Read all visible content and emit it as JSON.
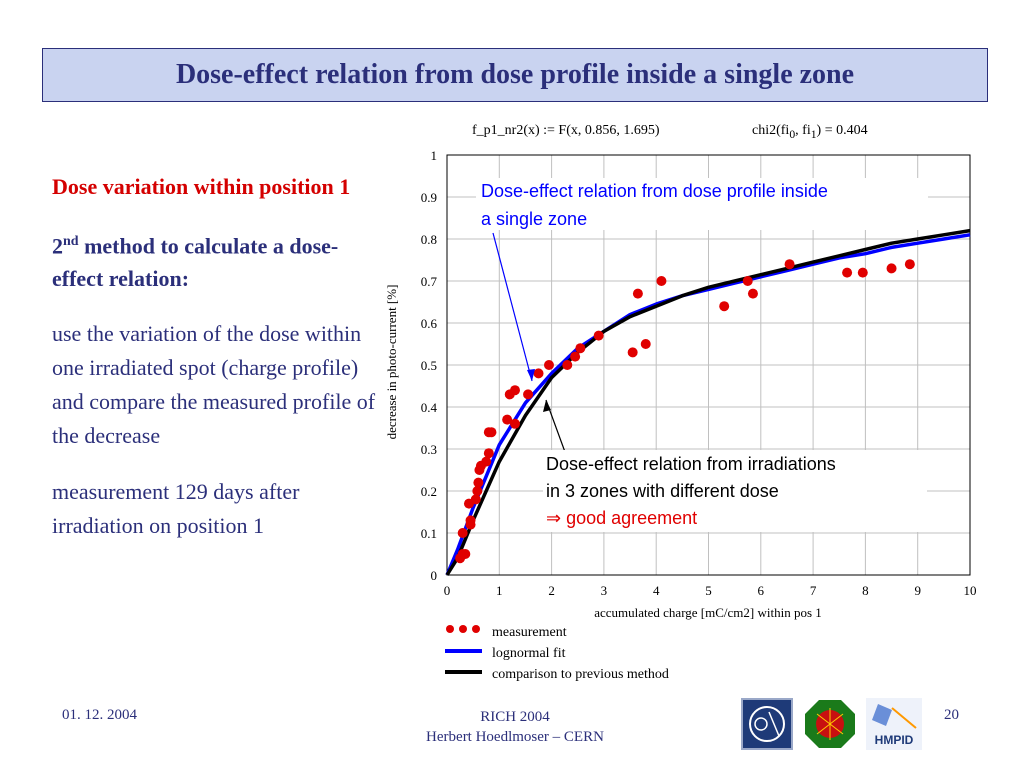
{
  "title": "Dose-effect relation from dose profile inside a single zone",
  "left": {
    "heading1": "Dose variation within position 1",
    "heading2_sup": "nd",
    "heading2_num": "2",
    "heading2_rest": " method to calculate a dose-effect relation:",
    "para1": "use the variation of the dose within one irradiated spot (charge profile) and compare the measured profile of the decrease",
    "para2": "measurement 129 days after irradiation on position 1"
  },
  "formula": {
    "fit": "f_p1_nr2(x) := F(x, 0.856, 1.695)",
    "chi": "chi2(fi",
    "chi_sub1": "0",
    "chi_mid": ", fi",
    "chi_sub2": "1",
    "chi_end": ") = 0.404"
  },
  "annotations": {
    "blue_label_line1": "Dose-effect relation from dose profile inside",
    "blue_label_line2": "a single zone",
    "black_label_line1": "Dose-effect relation from irradiations",
    "black_label_line2": "in 3 zones with different dose",
    "red_label": "⇒ good agreement"
  },
  "legend": {
    "measurement": "measurement",
    "lognormal": "lognormal fit",
    "comparison": "comparison to previous method"
  },
  "colors": {
    "title_bg": "#c9d3f0",
    "navy": "#2b2f7a",
    "red": "#e00000",
    "blue": "#0000ff",
    "black": "#000000"
  },
  "footer": {
    "date": "01. 12. 2004",
    "center1": "RICH 2004",
    "center2": "Herbert Hoedlmoser – CERN",
    "page": "20",
    "logos": [
      "cern-logo",
      "alice-logo",
      "hmpid-logo"
    ],
    "hmpid_text": "HMPID"
  },
  "chart_data": {
    "type": "scatter",
    "xlabel": "accumulated charge [mC/cm2] within pos 1",
    "ylabel": "decrease in photo-current [%]",
    "xlim": [
      0,
      10
    ],
    "ylim": [
      0,
      1
    ],
    "x_ticks": [
      "0",
      "1",
      "2",
      "3",
      "4",
      "5",
      "6",
      "7",
      "8",
      "9",
      "10"
    ],
    "y_ticks": [
      "0",
      "0.1",
      "0.2",
      "0.3",
      "0.4",
      "0.5",
      "0.6",
      "0.7",
      "0.8",
      "0.9",
      "1"
    ],
    "grid": true,
    "series": [
      {
        "name": "measurement",
        "points": [
          [
            0.25,
            0.04
          ],
          [
            0.3,
            0.05
          ],
          [
            0.35,
            0.05
          ],
          [
            0.3,
            0.1
          ],
          [
            0.45,
            0.12
          ],
          [
            0.45,
            0.13
          ],
          [
            0.42,
            0.17
          ],
          [
            0.55,
            0.18
          ],
          [
            0.58,
            0.2
          ],
          [
            0.6,
            0.22
          ],
          [
            0.62,
            0.25
          ],
          [
            0.65,
            0.26
          ],
          [
            0.75,
            0.27
          ],
          [
            0.8,
            0.29
          ],
          [
            0.8,
            0.34
          ],
          [
            0.85,
            0.34
          ],
          [
            1.15,
            0.37
          ],
          [
            1.2,
            0.43
          ],
          [
            1.3,
            0.44
          ],
          [
            1.3,
            0.36
          ],
          [
            1.55,
            0.43
          ],
          [
            1.75,
            0.48
          ],
          [
            1.95,
            0.5
          ],
          [
            2.3,
            0.5
          ],
          [
            2.45,
            0.52
          ],
          [
            2.55,
            0.54
          ],
          [
            2.9,
            0.57
          ],
          [
            3.55,
            0.53
          ],
          [
            3.65,
            0.67
          ],
          [
            3.8,
            0.55
          ],
          [
            4.1,
            0.7
          ],
          [
            5.3,
            0.64
          ],
          [
            5.75,
            0.7
          ],
          [
            5.85,
            0.67
          ],
          [
            6.55,
            0.74
          ],
          [
            7.65,
            0.72
          ],
          [
            7.95,
            0.72
          ],
          [
            8.5,
            0.73
          ],
          [
            8.85,
            0.74
          ]
        ]
      },
      {
        "name": "lognormal fit",
        "points": [
          [
            0,
            0
          ],
          [
            0.2,
            0.06
          ],
          [
            0.5,
            0.16
          ],
          [
            1,
            0.31
          ],
          [
            1.5,
            0.41
          ],
          [
            2,
            0.48
          ],
          [
            2.5,
            0.54
          ],
          [
            3,
            0.58
          ],
          [
            3.5,
            0.62
          ],
          [
            4,
            0.645
          ],
          [
            4.5,
            0.665
          ],
          [
            5,
            0.68
          ],
          [
            5.5,
            0.695
          ],
          [
            6,
            0.71
          ],
          [
            6.5,
            0.725
          ],
          [
            7,
            0.74
          ],
          [
            7.5,
            0.755
          ],
          [
            8,
            0.765
          ],
          [
            8.5,
            0.78
          ],
          [
            9,
            0.79
          ],
          [
            9.5,
            0.8
          ],
          [
            10,
            0.81
          ]
        ]
      },
      {
        "name": "comparison to previous method",
        "points": [
          [
            0,
            0
          ],
          [
            0.2,
            0.04
          ],
          [
            0.5,
            0.13
          ],
          [
            1,
            0.27
          ],
          [
            1.5,
            0.38
          ],
          [
            2,
            0.47
          ],
          [
            2.5,
            0.53
          ],
          [
            3,
            0.58
          ],
          [
            3.5,
            0.615
          ],
          [
            4,
            0.64
          ],
          [
            4.5,
            0.665
          ],
          [
            5,
            0.685
          ],
          [
            5.5,
            0.7
          ],
          [
            6,
            0.715
          ],
          [
            6.5,
            0.73
          ],
          [
            7,
            0.745
          ],
          [
            7.5,
            0.76
          ],
          [
            8,
            0.775
          ],
          [
            8.5,
            0.79
          ],
          [
            9,
            0.8
          ],
          [
            9.5,
            0.81
          ],
          [
            10,
            0.82
          ]
        ]
      }
    ]
  }
}
